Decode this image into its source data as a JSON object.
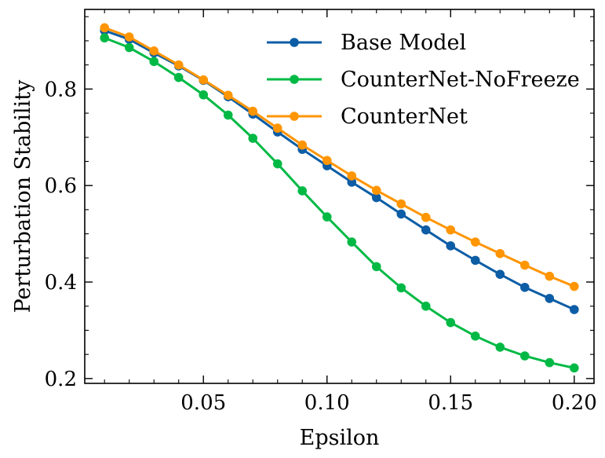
{
  "chart_data": {
    "type": "line",
    "xlabel": "Epsilon",
    "ylabel": "Perturbation Stability",
    "xlim": [
      0.002,
      0.208
    ],
    "ylim": [
      0.19,
      0.965
    ],
    "xticks": [
      0.05,
      0.1,
      0.15,
      0.2
    ],
    "xtick_labels": [
      "0.05",
      "0.10",
      "0.15",
      "0.20"
    ],
    "yticks": [
      0.2,
      0.4,
      0.6,
      0.8
    ],
    "ytick_labels": [
      "0.2",
      "0.4",
      "0.6",
      "0.8"
    ],
    "x": [
      0.01,
      0.02,
      0.03,
      0.04,
      0.05,
      0.06,
      0.07,
      0.08,
      0.09,
      0.1,
      0.11,
      0.12,
      0.13,
      0.14,
      0.15,
      0.16,
      0.17,
      0.18,
      0.19,
      0.2
    ],
    "legend_position": "top-right",
    "grid": false,
    "series": [
      {
        "name": "Base Model",
        "color": "#0C5DA5",
        "values": [
          0.921,
          0.903,
          0.875,
          0.848,
          0.818,
          0.784,
          0.748,
          0.711,
          0.675,
          0.641,
          0.607,
          0.575,
          0.541,
          0.508,
          0.475,
          0.445,
          0.416,
          0.389,
          0.366,
          0.343
        ]
      },
      {
        "name": "CounterNet-NoFreeze",
        "color": "#00B945",
        "values": [
          0.906,
          0.886,
          0.857,
          0.824,
          0.788,
          0.746,
          0.698,
          0.645,
          0.589,
          0.535,
          0.483,
          0.432,
          0.388,
          0.35,
          0.316,
          0.288,
          0.265,
          0.247,
          0.233,
          0.222
        ]
      },
      {
        "name": "CounterNet",
        "color": "#FF9500",
        "values": [
          0.927,
          0.908,
          0.879,
          0.85,
          0.819,
          0.787,
          0.754,
          0.719,
          0.684,
          0.652,
          0.62,
          0.59,
          0.562,
          0.534,
          0.508,
          0.483,
          0.459,
          0.435,
          0.412,
          0.391
        ]
      }
    ]
  }
}
